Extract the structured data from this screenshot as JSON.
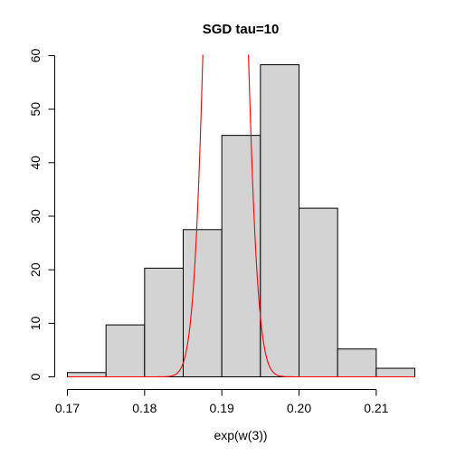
{
  "chart_data": {
    "type": "bar",
    "title": "SGD tau=10",
    "xlabel": "exp(w(3))",
    "ylabel": "",
    "xlim": [
      0.17,
      0.215
    ],
    "ylim": [
      0,
      60
    ],
    "x_ticks": [
      0.17,
      0.18,
      0.19,
      0.2,
      0.21
    ],
    "x_tick_labels": [
      "0.17",
      "0.18",
      "0.19",
      "0.20",
      "0.21"
    ],
    "y_ticks": [
      0,
      10,
      20,
      30,
      40,
      50,
      60
    ],
    "y_tick_labels": [
      "0",
      "10",
      "20",
      "30",
      "40",
      "50",
      "60"
    ],
    "grid": false,
    "bins": [
      {
        "start": 0.17,
        "end": 0.175,
        "value": 0.8
      },
      {
        "start": 0.175,
        "end": 0.18,
        "value": 9.7
      },
      {
        "start": 0.18,
        "end": 0.185,
        "value": 20.3
      },
      {
        "start": 0.185,
        "end": 0.19,
        "value": 27.5
      },
      {
        "start": 0.19,
        "end": 0.195,
        "value": 45.1
      },
      {
        "start": 0.195,
        "end": 0.2,
        "value": 58.3
      },
      {
        "start": 0.2,
        "end": 0.205,
        "value": 31.5
      },
      {
        "start": 0.205,
        "end": 0.21,
        "value": 5.2
      },
      {
        "start": 0.21,
        "end": 0.215,
        "value": 1.6
      }
    ],
    "curve": {
      "color": "#ff0000",
      "shape": "normal-density",
      "mean": 0.1905,
      "sd": 0.00185,
      "peak_density": 215.6
    }
  }
}
